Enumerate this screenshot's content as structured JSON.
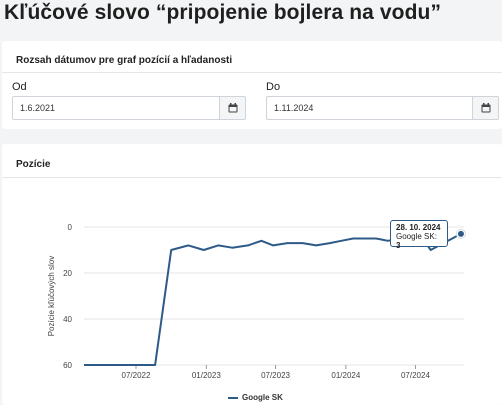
{
  "page": {
    "title": "Kľúčové slovo “pripojenie bojlera na vodu”"
  },
  "date_range": {
    "title": "Rozsah dátumov pre graf pozícií a hľadanosti",
    "from_label": "Od",
    "from_value": "1.6.2021",
    "to_label": "Do",
    "to_value": "1.11.2024"
  },
  "chart_section": {
    "title": "Pozície"
  },
  "tooltip": {
    "date": "28. 10. 2024",
    "series": "Google SK",
    "value": "3"
  },
  "colors": {
    "series": "#2e5a88",
    "grid": "#e5e5e5"
  },
  "chart_data": {
    "type": "line",
    "ylabel": "Pozície kľúčových slov",
    "xlabel": "",
    "ylim": [
      60,
      0
    ],
    "y_inverted": true,
    "yticks": [
      0,
      20,
      40,
      60
    ],
    "xticks": [
      "07/2022",
      "01/2023",
      "07/2023",
      "01/2024",
      "07/2024"
    ],
    "xtick_dates": [
      "2022-07-01",
      "2023-01-01",
      "2023-07-01",
      "2024-01-01",
      "2024-07-01"
    ],
    "xlim": [
      "2022-02-15",
      "2024-11-05"
    ],
    "series": [
      {
        "name": "Google SK",
        "points": [
          [
            "2022-02-15",
            60
          ],
          [
            "2022-04-01",
            60
          ],
          [
            "2022-08-20",
            60
          ],
          [
            "2022-10-01",
            10
          ],
          [
            "2022-11-15",
            8
          ],
          [
            "2022-12-25",
            10
          ],
          [
            "2023-02-01",
            8
          ],
          [
            "2023-03-10",
            9
          ],
          [
            "2023-04-20",
            8
          ],
          [
            "2023-05-25",
            6
          ],
          [
            "2023-06-25",
            8
          ],
          [
            "2023-08-01",
            7
          ],
          [
            "2023-09-10",
            7
          ],
          [
            "2023-10-15",
            8
          ],
          [
            "2023-11-20",
            7
          ],
          [
            "2023-12-20",
            6
          ],
          [
            "2024-01-20",
            5
          ],
          [
            "2024-02-20",
            5
          ],
          [
            "2024-03-20",
            5
          ],
          [
            "2024-04-20",
            6
          ],
          [
            "2024-05-20",
            5
          ],
          [
            "2024-06-20",
            4
          ],
          [
            "2024-07-20",
            5
          ],
          [
            "2024-08-10",
            10
          ],
          [
            "2024-10-28",
            3
          ]
        ]
      }
    ]
  }
}
